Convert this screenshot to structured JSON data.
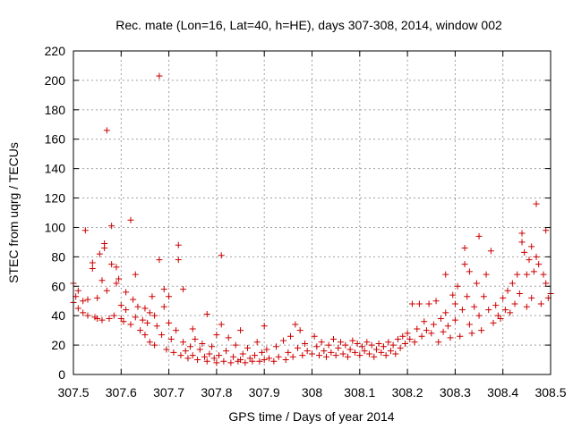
{
  "chart_data": {
    "type": "scatter",
    "title": "Rec. mate (Lon=16, Lat=40, h=HE), days 307-308, 2014, window 002",
    "xlabel": "GPS time / Days of year 2014",
    "ylabel": "STEC from uqrg / TECUs",
    "xlim": [
      307.5,
      308.5
    ],
    "ylim": [
      0,
      220
    ],
    "xticks": [
      307.5,
      307.6,
      307.7,
      307.8,
      307.9,
      308.0,
      308.1,
      308.2,
      308.3,
      308.4,
      308.5
    ],
    "xtick_labels": [
      "307.5",
      "307.6",
      "307.7",
      "307.8",
      "307.9",
      "308",
      "308.1",
      "308.2",
      "308.3",
      "308.4",
      "308.5"
    ],
    "yticks": [
      0,
      20,
      40,
      60,
      80,
      100,
      120,
      140,
      160,
      180,
      200,
      220
    ],
    "ytick_labels": [
      "0",
      "20",
      "40",
      "60",
      "80",
      "100",
      "120",
      "140",
      "160",
      "180",
      "200",
      "220"
    ],
    "grid": true,
    "marker": "+",
    "color": "#cc0000",
    "series": [
      {
        "name": "STEC",
        "points": [
          [
            307.5,
            62
          ],
          [
            307.5,
            49
          ],
          [
            307.505,
            53
          ],
          [
            307.51,
            45
          ],
          [
            307.51,
            57
          ],
          [
            307.52,
            42
          ],
          [
            307.52,
            50
          ],
          [
            307.525,
            98
          ],
          [
            307.53,
            40
          ],
          [
            307.53,
            51
          ],
          [
            307.54,
            76
          ],
          [
            307.54,
            72
          ],
          [
            307.545,
            39
          ],
          [
            307.55,
            52
          ],
          [
            307.55,
            38
          ],
          [
            307.555,
            82
          ],
          [
            307.56,
            37
          ],
          [
            307.56,
            64
          ],
          [
            307.565,
            89
          ],
          [
            307.565,
            86
          ],
          [
            307.57,
            166
          ],
          [
            307.57,
            57
          ],
          [
            307.575,
            38
          ],
          [
            307.58,
            101
          ],
          [
            307.58,
            75
          ],
          [
            307.585,
            40
          ],
          [
            307.59,
            62
          ],
          [
            307.59,
            73
          ],
          [
            307.595,
            65
          ],
          [
            307.6,
            38
          ],
          [
            307.6,
            47
          ],
          [
            307.605,
            36
          ],
          [
            307.61,
            56
          ],
          [
            307.61,
            44
          ],
          [
            307.62,
            105
          ],
          [
            307.62,
            34
          ],
          [
            307.625,
            51
          ],
          [
            307.63,
            68
          ],
          [
            307.63,
            39
          ],
          [
            307.635,
            46
          ],
          [
            307.64,
            30
          ],
          [
            307.645,
            37
          ],
          [
            307.65,
            45
          ],
          [
            307.65,
            27
          ],
          [
            307.655,
            35
          ],
          [
            307.66,
            42
          ],
          [
            307.66,
            22
          ],
          [
            307.665,
            53
          ],
          [
            307.67,
            40
          ],
          [
            307.67,
            20
          ],
          [
            307.675,
            33
          ],
          [
            307.68,
            203
          ],
          [
            307.68,
            78
          ],
          [
            307.685,
            27
          ],
          [
            307.69,
            46
          ],
          [
            307.69,
            58
          ],
          [
            307.695,
            17
          ],
          [
            307.7,
            53
          ],
          [
            307.7,
            35
          ],
          [
            307.705,
            24
          ],
          [
            307.71,
            15
          ],
          [
            307.715,
            30
          ],
          [
            307.72,
            88
          ],
          [
            307.72,
            78
          ],
          [
            307.725,
            13
          ],
          [
            307.73,
            22
          ],
          [
            307.73,
            58
          ],
          [
            307.735,
            16
          ],
          [
            307.74,
            11
          ],
          [
            307.745,
            19
          ],
          [
            307.75,
            31
          ],
          [
            307.75,
            13
          ],
          [
            307.755,
            24
          ],
          [
            307.76,
            10
          ],
          [
            307.765,
            17
          ],
          [
            307.77,
            21
          ],
          [
            307.775,
            12
          ],
          [
            307.78,
            41
          ],
          [
            307.78,
            9
          ],
          [
            307.785,
            14
          ],
          [
            307.79,
            19
          ],
          [
            307.795,
            11
          ],
          [
            307.8,
            8
          ],
          [
            307.8,
            27
          ],
          [
            307.805,
            13
          ],
          [
            307.81,
            81
          ],
          [
            307.81,
            34
          ],
          [
            307.815,
            9
          ],
          [
            307.82,
            16
          ],
          [
            307.825,
            25
          ],
          [
            307.83,
            8
          ],
          [
            307.835,
            12
          ],
          [
            307.84,
            20
          ],
          [
            307.845,
            9
          ],
          [
            307.85,
            10
          ],
          [
            307.85,
            30
          ],
          [
            307.855,
            14
          ],
          [
            307.86,
            8
          ],
          [
            307.865,
            18
          ],
          [
            307.87,
            11
          ],
          [
            307.875,
            9
          ],
          [
            307.88,
            13
          ],
          [
            307.885,
            22
          ],
          [
            307.89,
            9
          ],
          [
            307.895,
            15
          ],
          [
            307.9,
            10
          ],
          [
            307.9,
            33
          ],
          [
            307.905,
            17
          ],
          [
            307.91,
            11
          ],
          [
            307.92,
            9
          ],
          [
            307.925,
            19
          ],
          [
            307.93,
            12
          ],
          [
            307.94,
            23
          ],
          [
            307.945,
            10
          ],
          [
            307.95,
            15
          ],
          [
            307.955,
            26
          ],
          [
            307.96,
            12
          ],
          [
            307.965,
            34
          ],
          [
            307.97,
            18
          ],
          [
            307.975,
            30
          ],
          [
            307.98,
            13
          ],
          [
            307.985,
            21
          ],
          [
            307.99,
            16
          ],
          [
            308.0,
            14
          ],
          [
            308.005,
            26
          ],
          [
            308.01,
            19
          ],
          [
            308.015,
            13
          ],
          [
            308.02,
            22
          ],
          [
            308.025,
            16
          ],
          [
            308.03,
            12
          ],
          [
            308.035,
            20
          ],
          [
            308.04,
            15
          ],
          [
            308.045,
            24
          ],
          [
            308.05,
            13
          ],
          [
            308.055,
            18
          ],
          [
            308.06,
            22
          ],
          [
            308.065,
            14
          ],
          [
            308.07,
            20
          ],
          [
            308.075,
            12
          ],
          [
            308.08,
            17
          ],
          [
            308.085,
            23
          ],
          [
            308.09,
            15
          ],
          [
            308.095,
            21
          ],
          [
            308.1,
            13
          ],
          [
            308.105,
            19
          ],
          [
            308.11,
            16
          ],
          [
            308.115,
            22
          ],
          [
            308.12,
            14
          ],
          [
            308.125,
            20
          ],
          [
            308.13,
            12
          ],
          [
            308.135,
            17
          ],
          [
            308.14,
            21
          ],
          [
            308.145,
            15
          ],
          [
            308.15,
            19
          ],
          [
            308.155,
            13
          ],
          [
            308.16,
            22
          ],
          [
            308.165,
            16
          ],
          [
            308.17,
            20
          ],
          [
            308.175,
            14
          ],
          [
            308.18,
            24
          ],
          [
            308.185,
            18
          ],
          [
            308.19,
            26
          ],
          [
            308.195,
            21
          ],
          [
            308.2,
            28
          ],
          [
            308.205,
            24
          ],
          [
            308.21,
            48
          ],
          [
            308.215,
            22
          ],
          [
            308.22,
            31
          ],
          [
            308.225,
            48
          ],
          [
            308.23,
            26
          ],
          [
            308.235,
            36
          ],
          [
            308.24,
            30
          ],
          [
            308.245,
            48
          ],
          [
            308.25,
            28
          ],
          [
            308.255,
            34
          ],
          [
            308.26,
            50
          ],
          [
            308.265,
            22
          ],
          [
            308.27,
            38
          ],
          [
            308.275,
            29
          ],
          [
            308.28,
            68
          ],
          [
            308.28,
            42
          ],
          [
            308.285,
            33
          ],
          [
            308.29,
            25
          ],
          [
            308.295,
            54
          ],
          [
            308.3,
            48
          ],
          [
            308.3,
            37
          ],
          [
            308.305,
            60
          ],
          [
            308.31,
            26
          ],
          [
            308.315,
            44
          ],
          [
            308.32,
            86
          ],
          [
            308.32,
            75
          ],
          [
            308.325,
            53
          ],
          [
            308.33,
            70
          ],
          [
            308.33,
            34
          ],
          [
            308.335,
            28
          ],
          [
            308.34,
            46
          ],
          [
            308.345,
            62
          ],
          [
            308.35,
            94
          ],
          [
            308.35,
            40
          ],
          [
            308.355,
            30
          ],
          [
            308.36,
            53
          ],
          [
            308.365,
            68
          ],
          [
            308.37,
            44
          ],
          [
            308.375,
            84
          ],
          [
            308.38,
            35
          ],
          [
            308.385,
            47
          ],
          [
            308.39,
            40
          ],
          [
            308.395,
            38
          ],
          [
            308.4,
            52
          ],
          [
            308.405,
            44
          ],
          [
            308.41,
            57
          ],
          [
            308.415,
            42
          ],
          [
            308.42,
            62
          ],
          [
            308.425,
            48
          ],
          [
            308.43,
            68
          ],
          [
            308.435,
            55
          ],
          [
            308.44,
            96
          ],
          [
            308.44,
            90
          ],
          [
            308.445,
            83
          ],
          [
            308.45,
            46
          ],
          [
            308.45,
            68
          ],
          [
            308.455,
            78
          ],
          [
            308.46,
            87
          ],
          [
            308.46,
            52
          ],
          [
            308.465,
            70
          ],
          [
            308.47,
            116
          ],
          [
            308.47,
            80
          ],
          [
            308.475,
            75
          ],
          [
            308.48,
            48
          ],
          [
            308.485,
            68
          ],
          [
            308.49,
            98
          ],
          [
            308.49,
            62
          ],
          [
            308.495,
            52
          ],
          [
            308.5,
            55
          ]
        ]
      }
    ]
  }
}
